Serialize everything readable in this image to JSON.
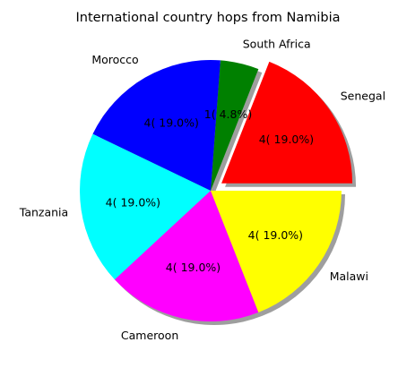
{
  "chart_data": {
    "type": "pie",
    "title": "International country hops from Namibia",
    "labels": [
      "Senegal",
      "South Africa",
      "Morocco",
      "Tanzania",
      "Cameroon",
      "Malawi"
    ],
    "values": [
      4,
      1,
      4,
      4,
      4,
      4
    ],
    "autopct_labels": [
      "4( 19.0%)",
      "1( 4.8%)",
      "4( 19.0%)",
      "4( 19.0%)",
      "4( 19.0%)",
      "4( 19.0%)"
    ],
    "colors": [
      "#ff0000",
      "#008000",
      "#0000ff",
      "#00ffff",
      "#ff00ff",
      "#ffff00"
    ],
    "explode": [
      0.1,
      0,
      0,
      0,
      0,
      0
    ],
    "shadow": true,
    "start_angle": 0,
    "direction": "counterclockwise"
  }
}
